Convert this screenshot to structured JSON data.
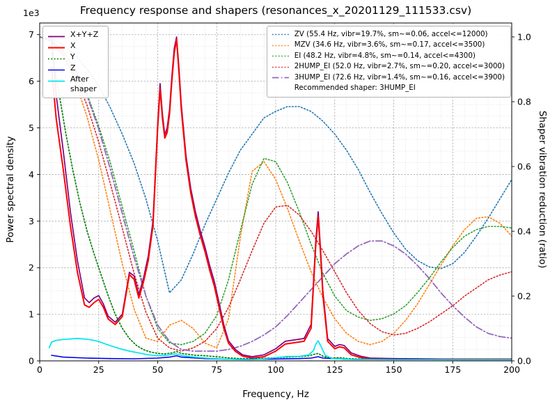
{
  "chart_data": {
    "type": "line",
    "title": "Frequency response and shapers (resonances_x_20201129_111533.csv)",
    "xlabel": "Frequency, Hz",
    "legend_note": "Recommended shaper: 3HUMP_EI",
    "x_axis": {
      "min": 0,
      "max": 200,
      "major_ticks": [
        0,
        25,
        50,
        75,
        100,
        125,
        150,
        175,
        200
      ],
      "minor_step": 5
    },
    "y_left": {
      "label": "Power spectral density",
      "offset_text": "1e3",
      "min": 0,
      "max": 7250,
      "major_ticks": [
        0,
        1000,
        2000,
        3000,
        4000,
        5000,
        6000,
        7000
      ],
      "tick_labels": [
        "0",
        "1",
        "2",
        "3",
        "4",
        "5",
        "6",
        "7"
      ],
      "minor_step": 250
    },
    "y_right": {
      "label": "Shaper vibration reduction (ratio)",
      "min": 0,
      "max": 1.043,
      "major_ticks": [
        0,
        0.2,
        0.4,
        0.6,
        0.8,
        1.0
      ],
      "tick_labels": [
        "0.0",
        "0.2",
        "0.4",
        "0.6",
        "0.8",
        "1.0"
      ]
    },
    "grid": {
      "major_color": "#a3a3a3",
      "minor_color": "#d8d8d8"
    },
    "psd_series": [
      {
        "name": "X+Y+Z",
        "color": "#800080",
        "style": "solid",
        "width": 1.7,
        "x": [
          5,
          7,
          10,
          13,
          16,
          19,
          21,
          23,
          25,
          27,
          29,
          32,
          35,
          38,
          40,
          42,
          44,
          46,
          48,
          50,
          51,
          52,
          53,
          54,
          55,
          56,
          57,
          58,
          59,
          60,
          62,
          64,
          66,
          68,
          70,
          72,
          74,
          76,
          78,
          80,
          83,
          86,
          90,
          95,
          100,
          104,
          108,
          112,
          115,
          117,
          118,
          119,
          120,
          122,
          125,
          127,
          129,
          132,
          136,
          140,
          150,
          160,
          170,
          180,
          190,
          200
        ],
        "y": [
          6950,
          5700,
          4500,
          3200,
          2150,
          1350,
          1250,
          1350,
          1400,
          1220,
          960,
          830,
          1000,
          1900,
          1820,
          1420,
          1780,
          2250,
          3000,
          5100,
          5950,
          5300,
          4850,
          5000,
          5400,
          6100,
          6700,
          6950,
          6300,
          5500,
          4400,
          3700,
          3200,
          2800,
          2450,
          2050,
          1700,
          1250,
          780,
          430,
          240,
          130,
          90,
          130,
          260,
          420,
          450,
          480,
          780,
          2600,
          3200,
          2400,
          1500,
          480,
          310,
          350,
          330,
          170,
          100,
          60,
          50,
          45,
          40,
          40,
          40,
          40
        ]
      },
      {
        "name": "X",
        "color": "#ff0000",
        "style": "solid",
        "width": 2.0,
        "x": [
          5,
          7,
          10,
          13,
          16,
          19,
          21,
          23,
          25,
          27,
          29,
          32,
          35,
          38,
          40,
          42,
          44,
          46,
          48,
          50,
          51,
          52,
          53,
          54,
          55,
          56,
          57,
          58,
          59,
          60,
          62,
          64,
          66,
          68,
          70,
          72,
          74,
          76,
          78,
          80,
          83,
          86,
          90,
          95,
          100,
          104,
          108,
          112,
          115,
          117,
          118,
          119,
          120,
          122,
          125,
          127,
          129,
          132,
          136,
          140,
          150,
          160,
          170,
          180,
          190,
          200
        ],
        "y": [
          6300,
          5200,
          4100,
          2900,
          1900,
          1200,
          1150,
          1250,
          1320,
          1150,
          900,
          780,
          950,
          1850,
          1750,
          1350,
          1700,
          2150,
          2900,
          5000,
          5850,
          5200,
          4780,
          4900,
          5300,
          6000,
          6600,
          6900,
          6200,
          5400,
          4300,
          3600,
          3100,
          2700,
          2350,
          1950,
          1600,
          1150,
          700,
          380,
          200,
          100,
          60,
          90,
          210,
          360,
          390,
          420,
          700,
          2500,
          3100,
          2300,
          1400,
          420,
          260,
          300,
          280,
          130,
          70,
          40,
          30,
          30,
          30,
          30,
          30,
          30
        ]
      },
      {
        "name": "Y",
        "color": "#008000",
        "style": "dotted",
        "width": 1.7,
        "x": [
          5,
          8,
          11,
          14,
          17,
          20,
          23,
          26,
          29,
          32,
          35,
          38,
          41,
          44,
          47,
          50,
          53,
          56,
          58,
          60,
          63,
          66,
          70,
          75,
          80,
          85,
          90,
          95,
          100,
          105,
          110,
          114,
          117,
          118,
          120,
          123,
          127,
          130,
          140,
          150,
          160,
          170,
          180,
          190,
          200
        ],
        "y": [
          6600,
          5800,
          4900,
          4100,
          3400,
          2800,
          2300,
          1850,
          1400,
          1000,
          700,
          480,
          330,
          240,
          190,
          160,
          150,
          170,
          200,
          160,
          140,
          120,
          110,
          90,
          65,
          50,
          45,
          55,
          70,
          80,
          90,
          110,
          150,
          160,
          100,
          60,
          70,
          50,
          35,
          30,
          28,
          26,
          25,
          25,
          25
        ]
      },
      {
        "name": "Z",
        "color": "#0000ee",
        "style": "solid",
        "width": 1.6,
        "x": [
          5,
          10,
          20,
          30,
          40,
          50,
          55,
          58,
          60,
          70,
          80,
          90,
          100,
          110,
          115,
          118,
          120,
          130,
          140,
          160,
          180,
          200
        ],
        "y": [
          120,
          80,
          60,
          50,
          45,
          60,
          80,
          110,
          80,
          50,
          35,
          30,
          40,
          50,
          60,
          90,
          60,
          35,
          30,
          28,
          26,
          25
        ]
      },
      {
        "name": "After shaper",
        "color": "#00e5ee",
        "style": "solid",
        "width": 1.7,
        "x": [
          4,
          5,
          7,
          10,
          13,
          16,
          19,
          22,
          25,
          28,
          31,
          34,
          38,
          42,
          46,
          50,
          54,
          56,
          58,
          60,
          64,
          68,
          72,
          76,
          80,
          85,
          90,
          95,
          100,
          105,
          110,
          114,
          116,
          117,
          118,
          119,
          121,
          124,
          128,
          132,
          140,
          150,
          160,
          180,
          200
        ],
        "y": [
          280,
          400,
          440,
          460,
          470,
          480,
          470,
          450,
          415,
          360,
          310,
          260,
          210,
          170,
          130,
          110,
          120,
          140,
          150,
          120,
          90,
          70,
          55,
          45,
          35,
          28,
          26,
          40,
          70,
          95,
          95,
          130,
          220,
          360,
          430,
          330,
          120,
          50,
          40,
          32,
          28,
          26,
          25,
          25,
          25
        ]
      }
    ],
    "shaper_x": [
      0,
      5,
      10,
      15,
      20,
      25,
      30,
      35,
      40,
      45,
      50,
      55,
      60,
      65,
      70,
      75,
      80,
      85,
      90,
      95,
      100,
      105,
      110,
      115,
      120,
      125,
      130,
      135,
      140,
      145,
      150,
      155,
      160,
      165,
      170,
      175,
      180,
      185,
      190,
      195,
      200
    ],
    "shaper_series": [
      {
        "name": "ZV",
        "label": "ZV (55.4 Hz, vibr=19.7%, sm~=0.06, accel<=12000)",
        "color": "#1f77b4",
        "style": "dotted",
        "width": 1.6,
        "r": [
          1.0,
          0.995,
          0.975,
          0.945,
          0.9,
          0.85,
          0.78,
          0.7,
          0.61,
          0.5,
          0.37,
          0.21,
          0.25,
          0.33,
          0.42,
          0.5,
          0.58,
          0.65,
          0.7,
          0.75,
          0.77,
          0.785,
          0.785,
          0.77,
          0.74,
          0.7,
          0.65,
          0.59,
          0.52,
          0.455,
          0.395,
          0.345,
          0.31,
          0.29,
          0.285,
          0.3,
          0.335,
          0.385,
          0.44,
          0.5,
          0.56
        ]
      },
      {
        "name": "MZV",
        "label": "MZV (34.6 Hz, vibr=3.6%, sm~=0.17, accel<=3500)",
        "color": "#ff7f0e",
        "style": "dotted",
        "width": 1.6,
        "r": [
          1.0,
          0.985,
          0.94,
          0.865,
          0.755,
          0.62,
          0.46,
          0.3,
          0.16,
          0.07,
          0.06,
          0.11,
          0.125,
          0.1,
          0.055,
          0.04,
          0.13,
          0.38,
          0.585,
          0.615,
          0.56,
          0.47,
          0.37,
          0.275,
          0.195,
          0.13,
          0.085,
          0.06,
          0.05,
          0.06,
          0.085,
          0.125,
          0.175,
          0.235,
          0.295,
          0.355,
          0.405,
          0.44,
          0.445,
          0.425,
          0.385
        ]
      },
      {
        "name": "EI",
        "label": "EI (48.2 Hz, vibr=4.8%, sm~=0.14, accel<=4300)",
        "color": "#2ca02c",
        "style": "dotted",
        "width": 1.6,
        "r": [
          1.0,
          0.99,
          0.955,
          0.9,
          0.825,
          0.725,
          0.61,
          0.475,
          0.34,
          0.2,
          0.1,
          0.055,
          0.05,
          0.06,
          0.085,
          0.14,
          0.25,
          0.4,
          0.545,
          0.625,
          0.615,
          0.55,
          0.46,
          0.36,
          0.27,
          0.2,
          0.155,
          0.135,
          0.125,
          0.13,
          0.145,
          0.17,
          0.21,
          0.255,
          0.305,
          0.35,
          0.385,
          0.405,
          0.415,
          0.415,
          0.41
        ]
      },
      {
        "name": "2HUMP_EI",
        "label": "2HUMP_EI (52.0 Hz, vibr=2.7%, sm~=0.20, accel<=3000)",
        "color": "#d62728",
        "style": "dotted",
        "width": 1.6,
        "r": [
          1.0,
          0.985,
          0.945,
          0.88,
          0.79,
          0.675,
          0.545,
          0.41,
          0.27,
          0.15,
          0.07,
          0.04,
          0.03,
          0.04,
          0.06,
          0.1,
          0.165,
          0.25,
          0.34,
          0.425,
          0.475,
          0.48,
          0.45,
          0.4,
          0.34,
          0.275,
          0.21,
          0.155,
          0.115,
          0.09,
          0.08,
          0.085,
          0.1,
          0.12,
          0.145,
          0.17,
          0.2,
          0.225,
          0.25,
          0.265,
          0.275
        ]
      },
      {
        "name": "3HUMP_EI",
        "label": "3HUMP_EI (72.6 Hz, vibr=1.4%, sm~=0.16, accel<=3900)",
        "color": "#9467bd",
        "style": "dashdot",
        "width": 1.8,
        "r": [
          1.0,
          0.99,
          0.955,
          0.9,
          0.82,
          0.715,
          0.59,
          0.455,
          0.32,
          0.2,
          0.11,
          0.06,
          0.035,
          0.03,
          0.03,
          0.03,
          0.035,
          0.045,
          0.06,
          0.08,
          0.105,
          0.14,
          0.18,
          0.22,
          0.26,
          0.3,
          0.33,
          0.355,
          0.37,
          0.37,
          0.355,
          0.33,
          0.295,
          0.255,
          0.21,
          0.17,
          0.135,
          0.105,
          0.085,
          0.075,
          0.07
        ]
      }
    ]
  }
}
